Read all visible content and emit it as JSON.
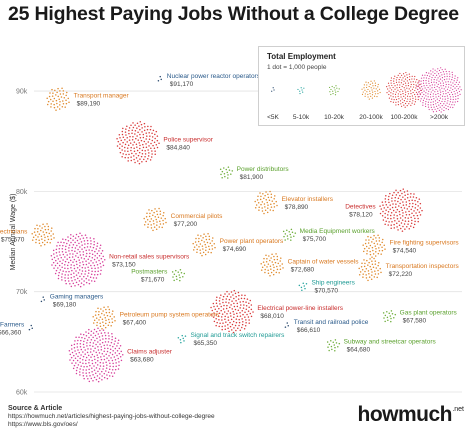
{
  "header": {
    "title": "25 Highest Paying Jobs Without a College Degree"
  },
  "legend": {
    "title": "Total Employment",
    "subtitle": "1 dot = 1,000 people",
    "items": [
      {
        "label": "<5K",
        "color": "#2a4a6e",
        "dots": 3
      },
      {
        "label": "5-10k",
        "color": "#2aa6a0",
        "dots": 7
      },
      {
        "label": "10-20k",
        "color": "#6fae3c",
        "dots": 15
      },
      {
        "label": "20-100k",
        "color": "#e08a2c",
        "dots": 45
      },
      {
        "label": "100-200k",
        "color": "#d93a3a",
        "dots": 150
      },
      {
        "label": ">200k",
        "color": "#d63f9a",
        "dots": 240
      }
    ]
  },
  "chart_data": {
    "type": "scatter",
    "title": "25 Highest Paying Jobs Without a College Degree",
    "ylabel": "Median Annual Wage ($)",
    "ylim": [
      60000,
      92000
    ],
    "yticks": [
      {
        "value": 60000,
        "label": "60k"
      },
      {
        "value": 70000,
        "label": "70k"
      },
      {
        "value": 80000,
        "label": "80k"
      },
      {
        "value": 90000,
        "label": "90k"
      }
    ],
    "grid": true,
    "legend_position": "top-right",
    "points": [
      {
        "name": "Nuclear power reactor operators",
        "wage_label": "$91,170",
        "wage": 91170,
        "category": "<5K"
      },
      {
        "name": "Transport manager",
        "wage_label": "$89,190",
        "wage": 89190,
        "category": "20-100k"
      },
      {
        "name": "Police supervisor",
        "wage_label": "$84,840",
        "wage": 84840,
        "category": "100-200k"
      },
      {
        "name": "Power distributors",
        "wage_label": "$81,900",
        "wage": 81900,
        "category": "10-20k"
      },
      {
        "name": "Elevator installers",
        "wage_label": "$78,890",
        "wage": 78890,
        "category": "20-100k"
      },
      {
        "name": "Detectives",
        "wage_label": "$78,120",
        "wage": 78120,
        "category": "100-200k"
      },
      {
        "name": "Commercial pilots",
        "wage_label": "$77,200",
        "wage": 77200,
        "category": "20-100k"
      },
      {
        "name": "Electricians",
        "wage_label": "$75,670",
        "wage": 75670,
        "category": "20-100k"
      },
      {
        "name": "Media Equipment workers",
        "wage_label": "$75,700",
        "wage": 75700,
        "category": "10-20k"
      },
      {
        "name": "Power plant operators",
        "wage_label": "$74,690",
        "wage": 74690,
        "category": "20-100k"
      },
      {
        "name": "Fire fighting supervisors",
        "wage_label": "$74,540",
        "wage": 74540,
        "category": "20-100k"
      },
      {
        "name": "Non-retail sales supervisors",
        "wage_label": "$73,150",
        "wage": 73150,
        "category": ">200k"
      },
      {
        "name": "Captain of water vessels",
        "wage_label": "$72,680",
        "wage": 72680,
        "category": "20-100k"
      },
      {
        "name": "Transportation inspectors",
        "wage_label": "$72,220",
        "wage": 72220,
        "category": "20-100k"
      },
      {
        "name": "Postmasters",
        "wage_label": "$71,670",
        "wage": 71670,
        "category": "10-20k"
      },
      {
        "name": "Ship engineers",
        "wage_label": "$70,570",
        "wage": 70570,
        "category": "5-10k"
      },
      {
        "name": "Gaming managers",
        "wage_label": "$69,180",
        "wage": 69180,
        "category": "<5K"
      },
      {
        "name": "Electrical power-line installers",
        "wage_label": "$68,010",
        "wage": 68010,
        "category": "100-200k"
      },
      {
        "name": "Petroleum pump system operators",
        "wage_label": "$67,400",
        "wage": 67400,
        "category": "20-100k"
      },
      {
        "name": "Gas plant operators",
        "wage_label": "$67,580",
        "wage": 67580,
        "category": "10-20k"
      },
      {
        "name": "Farmers",
        "wage_label": "$66,360",
        "wage": 66360,
        "category": "<5K"
      },
      {
        "name": "Transit and railroad police",
        "wage_label": "$66,610",
        "wage": 66610,
        "category": "<5K"
      },
      {
        "name": "Signal and track switch repairers",
        "wage_label": "$65,350",
        "wage": 65350,
        "category": "5-10k"
      },
      {
        "name": "Subway and streetcar operators",
        "wage_label": "$64,680",
        "wage": 64680,
        "category": "10-20k"
      },
      {
        "name": "Claims adjuster",
        "wage_label": "$63,680",
        "wage": 63680,
        "category": ">200k"
      }
    ]
  },
  "footer": {
    "source_heading": "Source & Article",
    "source_line1": "https://howmuch.net/articles/highest-paying-jobs-without-college-degree",
    "source_line2": "https://www.bls.gov/oes/",
    "brand": "howmuch",
    "brand_suffix": ".net"
  }
}
